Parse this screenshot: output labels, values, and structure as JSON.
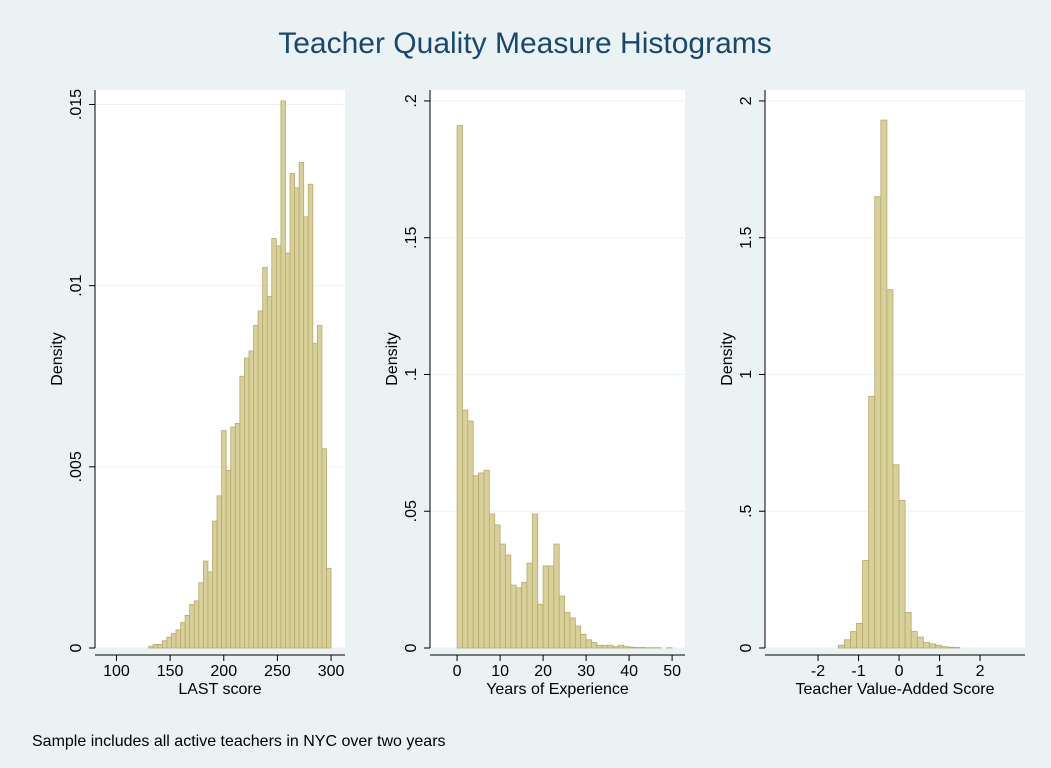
{
  "title": "Teacher Quality Measure Histograms",
  "note": "Sample includes all active teachers in NYC over two years",
  "chart_data": [
    {
      "type": "histogram",
      "xlabel": "LAST score",
      "ylabel": "Density",
      "color": "#d8d09a",
      "edgecolor": "#b5aa6c",
      "grid": true,
      "bins": [
        130,
        134.25,
        138.5,
        142.75,
        147,
        151.25,
        155.5,
        159.75,
        164,
        168.25,
        172.5,
        176.75,
        181,
        185.25,
        189.5,
        193.75,
        198,
        202.25,
        206.5,
        210.75,
        215,
        219.25,
        223.5,
        227.75,
        232,
        236.25,
        240.5,
        244.75,
        249,
        253.25,
        257.5,
        261.75,
        266,
        270.25,
        274.5,
        278.75,
        283,
        287.25,
        291.5,
        295.75,
        300
      ],
      "values": [
        5e-05,
        0.0001,
        0.0001,
        0.0002,
        0.0003,
        0.0004,
        0.0005,
        0.0007,
        0.0009,
        0.0012,
        0.0013,
        0.0018,
        0.0024,
        0.0021,
        0.0035,
        0.0042,
        0.006,
        0.0049,
        0.0061,
        0.0062,
        0.0075,
        0.008,
        0.0082,
        0.0089,
        0.0093,
        0.0105,
        0.0097,
        0.0113,
        0.0111,
        0.0151,
        0.0109,
        0.0131,
        0.0127,
        0.0134,
        0.0119,
        0.0128,
        0.0084,
        0.0089,
        0.0055,
        0.0022
      ],
      "xlim": [
        80,
        313
      ],
      "ylim": [
        0,
        0.0154
      ],
      "xticks": [
        100,
        150,
        200,
        250,
        300
      ],
      "yticks": [
        0,
        {
          "value": 0.005,
          "label": ".005"
        },
        {
          "value": 0.01,
          "label": ".01"
        },
        {
          "value": 0.015,
          "label": ".015"
        }
      ]
    },
    {
      "type": "histogram",
      "xlabel": "Years of Experience",
      "ylabel": "Density",
      "color": "#d8d09a",
      "edgecolor": "#b5aa6c",
      "grid": true,
      "bins": [
        0,
        1.25,
        2.5,
        3.75,
        5,
        6.25,
        7.5,
        8.75,
        10,
        11.25,
        12.5,
        13.75,
        15,
        16.25,
        17.5,
        18.75,
        20,
        21.25,
        22.5,
        23.75,
        25,
        26.25,
        27.5,
        28.75,
        30,
        31.25,
        32.5,
        33.75,
        35,
        36.25,
        37.5,
        38.75,
        40,
        41.25,
        42.5,
        43.75,
        45,
        46.25,
        47.5,
        48.75,
        50
      ],
      "values": [
        0.191,
        0.087,
        0.083,
        0.063,
        0.064,
        0.065,
        0.049,
        0.045,
        0.038,
        0.034,
        0.023,
        0.022,
        0.024,
        0.031,
        0.049,
        0.016,
        0.03,
        0.03,
        0.038,
        0.019,
        0.013,
        0.011,
        0.008,
        0.005,
        0.003,
        0.002,
        0.001,
        0.001,
        0.001,
        0.0005,
        0.001,
        0.0005,
        0.0003,
        0.0002,
        0.0002,
        0.0001,
        0.0001,
        0.0001,
        0,
        0.0001
      ],
      "xlim": [
        -6.3,
        53
      ],
      "ylim": [
        0,
        0.204
      ],
      "xticks": [
        0,
        10,
        20,
        30,
        40,
        50
      ],
      "yticks": [
        0,
        {
          "value": 0.05,
          "label": ".05"
        },
        {
          "value": 0.1,
          "label": ".1"
        },
        {
          "value": 0.15,
          "label": ".15"
        },
        {
          "value": 0.2,
          "label": ".2"
        }
      ]
    },
    {
      "type": "histogram",
      "xlabel": "Teacher Value-Added Score",
      "ylabel": "Density",
      "color": "#d8d09a",
      "edgecolor": "#b5aa6c",
      "grid": true,
      "bins": [
        -1.5,
        -1.35,
        -1.2,
        -1.05,
        -0.9,
        -0.75,
        -0.6,
        -0.45,
        -0.3,
        -0.15,
        0,
        0.15,
        0.3,
        0.45,
        0.6,
        0.75,
        0.9,
        1.05,
        1.2,
        1.35,
        1.5
      ],
      "values": [
        0.01,
        0.03,
        0.06,
        0.09,
        0.32,
        0.92,
        1.65,
        1.93,
        1.31,
        0.67,
        0.54,
        0.13,
        0.06,
        0.04,
        0.02,
        0.015,
        0.01,
        0.005,
        0.003,
        0.002
      ],
      "xlim": [
        -3.31,
        3.11
      ],
      "ylim": [
        0,
        2.04
      ],
      "xticks": [
        -2,
        -1,
        0,
        1,
        2
      ],
      "yticks": [
        0,
        {
          "value": 0.5,
          "label": ".5"
        },
        1,
        1.5,
        2
      ]
    }
  ]
}
